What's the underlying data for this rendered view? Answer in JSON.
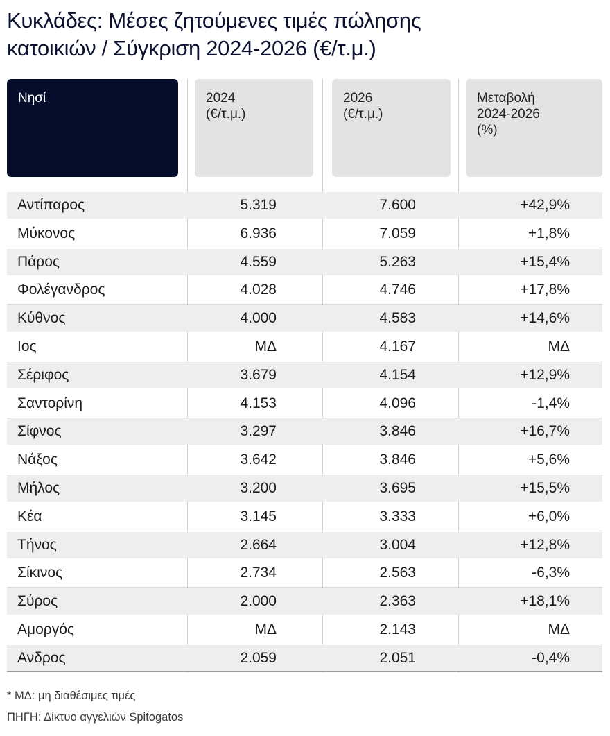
{
  "title_line1": "Κυκλάδες: Μέσες ζητούμενες τιμές πώλησης",
  "title_line2": "κατοικιών / Σύγκριση 2024-2026 (€/τ.μ.)",
  "headers": [
    "Νησί",
    "2024\n(€/τ.μ.)",
    "2026\n(€/τ.μ.)",
    "Μεταβολή\n2024-2026\n(%)"
  ],
  "colors": {
    "header_dark": "#060d2b",
    "header_light": "#e3e3e3",
    "row_shade": "#eeeeee"
  },
  "chart_data": {
    "type": "table",
    "title": "Κυκλάδες: Μέσες ζητούμενες τιμές πώλησης κατοικιών / Σύγκριση 2024-2026 (€/τ.μ.)",
    "columns": [
      "Νησί",
      "2024 (€/τ.μ.)",
      "2026 (€/τ.μ.)",
      "Μεταβολή 2024-2026 (%)"
    ],
    "rows": [
      [
        "Αντίπαρος",
        "5.319",
        "7.600",
        "+42,9%"
      ],
      [
        "Μύκονος",
        "6.936",
        "7.059",
        "+1,8%"
      ],
      [
        "Πάρος",
        "4.559",
        "5.263",
        "+15,4%"
      ],
      [
        "Φολέγανδρος",
        "4.028",
        "4.746",
        "+17,8%"
      ],
      [
        "Κύθνος",
        "4.000",
        "4.583",
        "+14,6%"
      ],
      [
        "Ιος",
        "ΜΔ",
        "4.167",
        "ΜΔ"
      ],
      [
        "Σέριφος",
        "3.679",
        "4.154",
        "+12,9%"
      ],
      [
        "Σαντορίνη",
        "4.153",
        "4.096",
        "-1,4%"
      ],
      [
        "Σίφνος",
        "3.297",
        "3.846",
        "+16,7%"
      ],
      [
        "Νάξος",
        "3.642",
        "3.846",
        "+5,6%"
      ],
      [
        "Μήλος",
        "3.200",
        "3.695",
        "+15,5%"
      ],
      [
        "Κέα",
        "3.145",
        "3.333",
        "+6,0%"
      ],
      [
        "Τήνος",
        "2.664",
        "3.004",
        "+12,8%"
      ],
      [
        "Σίκινος",
        "2.734",
        "2.563",
        "-6,3%"
      ],
      [
        "Σύρος",
        "2.000",
        "2.363",
        "+18,1%"
      ],
      [
        "Αμοργός",
        "ΜΔ",
        "2.143",
        "ΜΔ"
      ],
      [
        "Ανδρος",
        "2.059",
        "2.051",
        "-0,4%"
      ]
    ]
  },
  "footnote": "* ΜΔ: μη διαθέσιμες τιμές",
  "source": "ΠΗΓΗ: Δίκτυο αγγελιών Spitogatos"
}
